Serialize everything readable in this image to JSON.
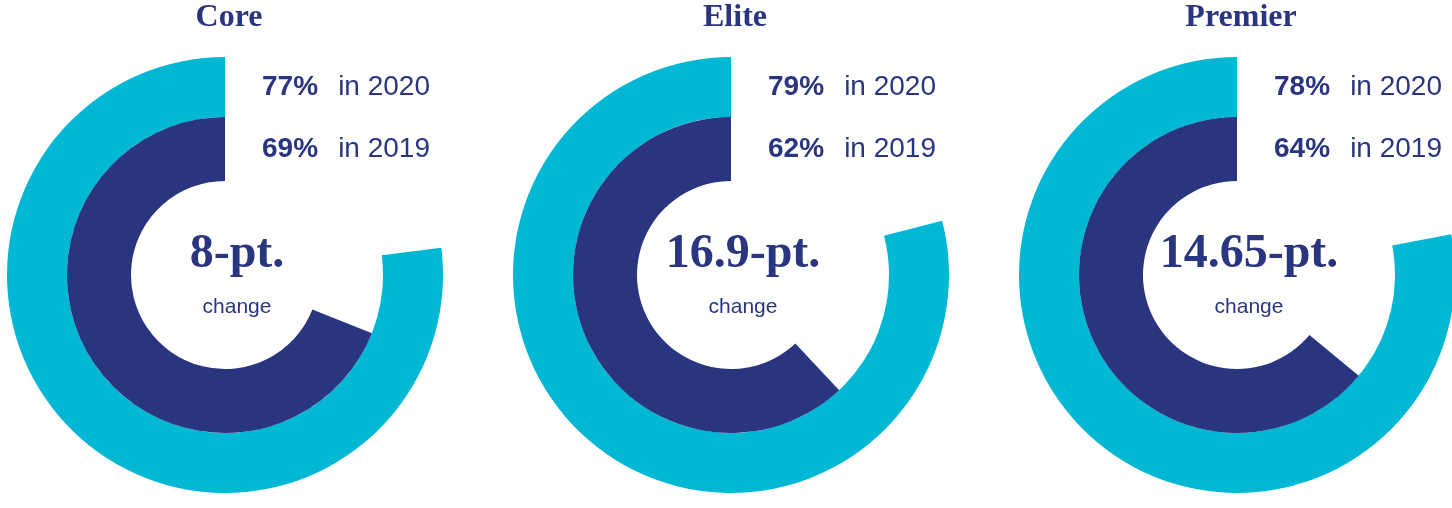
{
  "chart_data": [
    {
      "type": "other",
      "title": "Core",
      "categories": [
        "in 2020",
        "in 2019"
      ],
      "values": [
        77,
        69
      ],
      "colors": [
        "#00b8d4",
        "#2a3580"
      ],
      "value_labels": [
        "77%",
        "69%"
      ],
      "annotations": [
        "8-pt.",
        "change"
      ]
    },
    {
      "type": "other",
      "title": "Elite",
      "categories": [
        "in 2020",
        "in 2019"
      ],
      "values": [
        79,
        62
      ],
      "colors": [
        "#00b8d4",
        "#2a3580"
      ],
      "value_labels": [
        "79%",
        "62%"
      ],
      "annotations": [
        "16.9-pt.",
        "change"
      ]
    },
    {
      "type": "other",
      "title": "Premier",
      "categories": [
        "in 2020",
        "in 2019"
      ],
      "values": [
        78,
        64
      ],
      "colors": [
        "#00b8d4",
        "#2a3580"
      ],
      "value_labels": [
        "78%",
        "64%"
      ],
      "annotations": [
        "14.65-pt.",
        "change"
      ]
    }
  ]
}
